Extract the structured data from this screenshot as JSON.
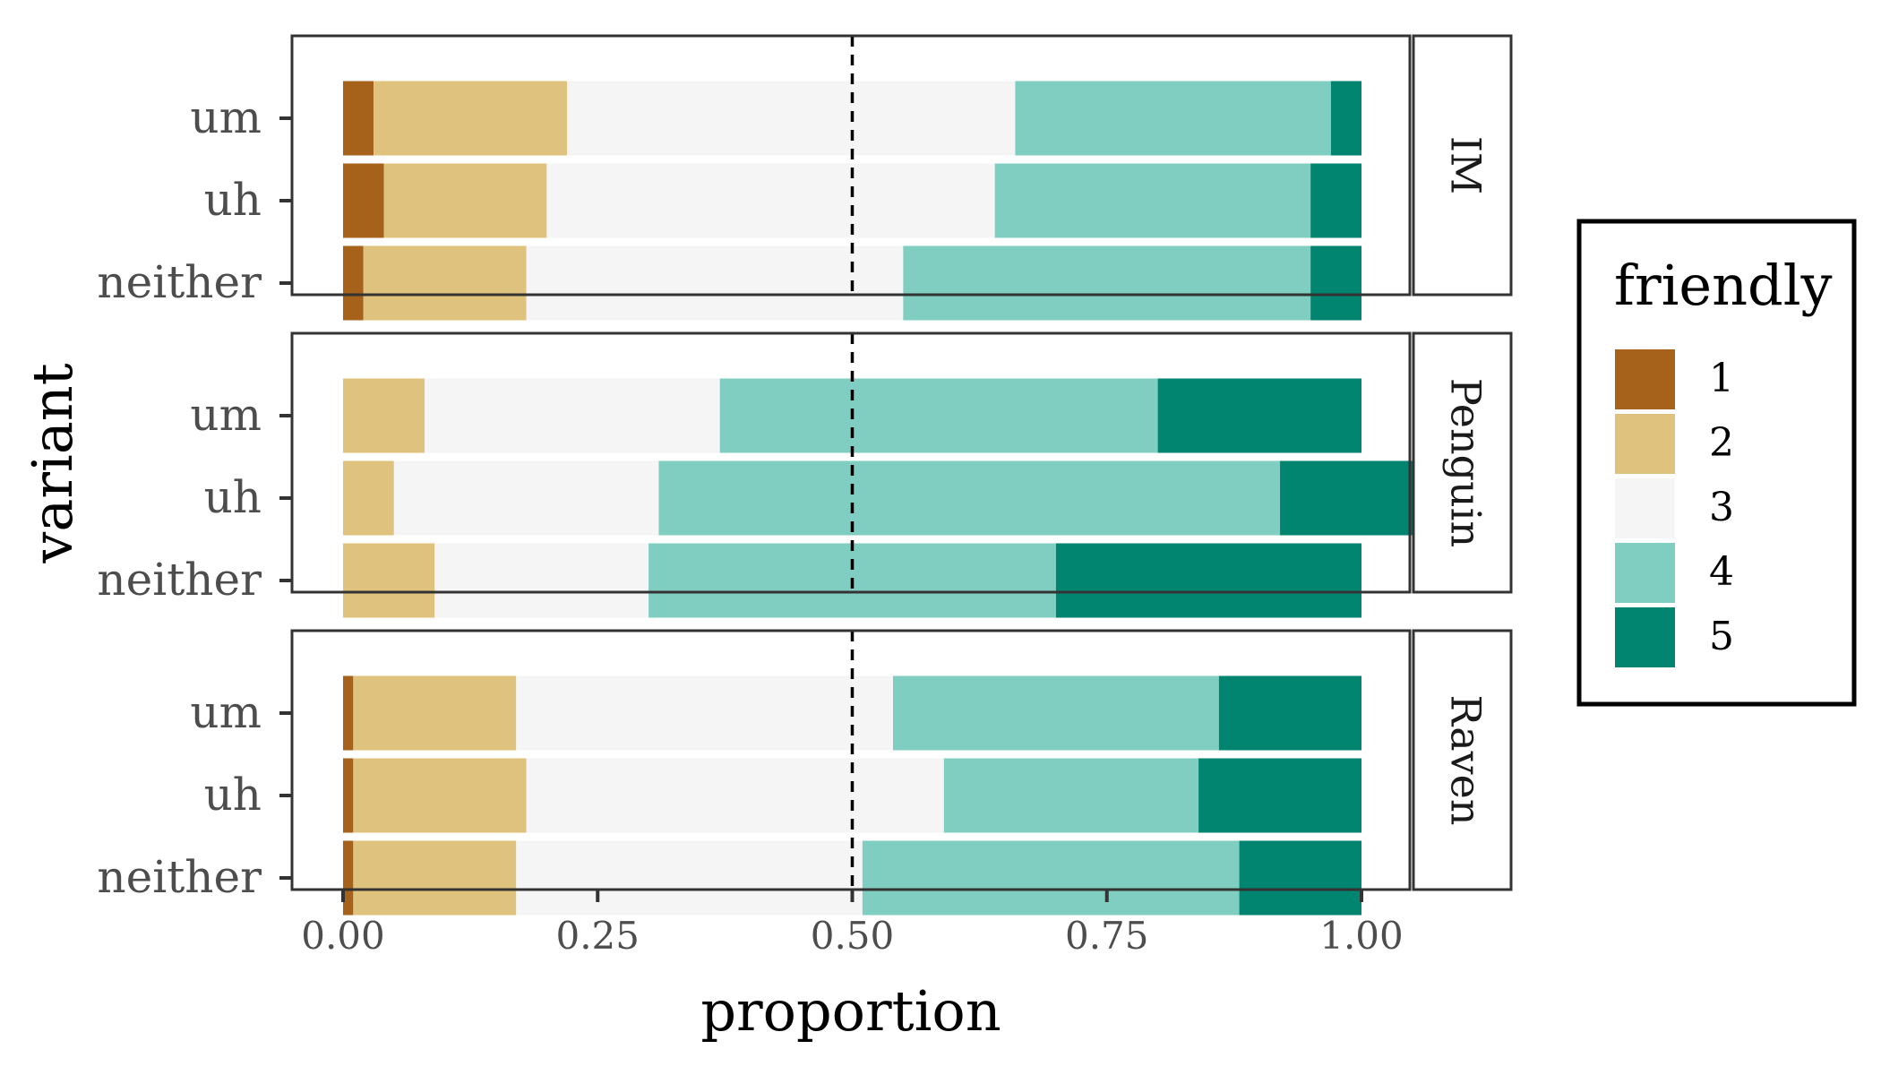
{
  "chart_data": {
    "type": "bar",
    "orientation": "horizontal",
    "stacked": true,
    "xlabel": "proportion",
    "ylabel": "variant",
    "xlim": [
      0,
      1
    ],
    "x_ticks": [
      "0.00",
      "0.25",
      "0.50",
      "0.75",
      "1.00"
    ],
    "reference_line": {
      "x": 0.5,
      "style": "dashed"
    },
    "categories": [
      "um",
      "uh",
      "neither"
    ],
    "legend": {
      "title": "friendly",
      "position": "right",
      "levels": [
        "1",
        "2",
        "3",
        "4",
        "5"
      ],
      "colors": [
        "#a6611a",
        "#dfc27d",
        "#f5f5f5",
        "#80cdc1",
        "#018571"
      ]
    },
    "facets": [
      {
        "label": "IM",
        "rows": [
          {
            "variant": "um",
            "values": [
              0.03,
              0.19,
              0.44,
              0.31,
              0.03
            ]
          },
          {
            "variant": "uh",
            "values": [
              0.04,
              0.16,
              0.44,
              0.31,
              0.05
            ]
          },
          {
            "variant": "neither",
            "values": [
              0.02,
              0.16,
              0.37,
              0.4,
              0.05
            ]
          }
        ]
      },
      {
        "label": "Penguin",
        "rows": [
          {
            "variant": "um",
            "values": [
              0.0,
              0.08,
              0.29,
              0.43,
              0.2
            ]
          },
          {
            "variant": "uh",
            "values": [
              0.0,
              0.05,
              0.26,
              0.61,
              0.18
            ]
          },
          {
            "variant": "neither",
            "values": [
              0.0,
              0.09,
              0.21,
              0.4,
              0.3
            ]
          }
        ]
      },
      {
        "label": "Raven",
        "rows": [
          {
            "variant": "um",
            "values": [
              0.01,
              0.16,
              0.37,
              0.32,
              0.14
            ]
          },
          {
            "variant": "uh",
            "values": [
              0.01,
              0.17,
              0.41,
              0.25,
              0.16
            ]
          },
          {
            "variant": "neither",
            "values": [
              0.01,
              0.16,
              0.34,
              0.37,
              0.12
            ]
          }
        ]
      }
    ]
  }
}
